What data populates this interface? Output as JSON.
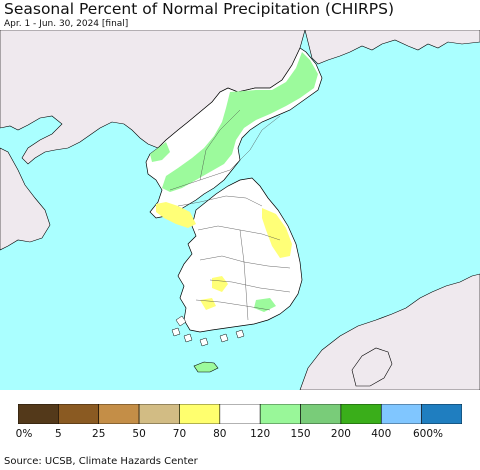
{
  "title": "Seasonal Percent of Normal Precipitation (CHIRPS)",
  "subtitle": "Apr. 1 - Jun. 30, 2024 [final]",
  "source": "Source: UCSB, Climate Hazards Center",
  "colors": {
    "ocean": "#aaffff",
    "land_outside": "#efe9ee",
    "normal": "#ffffff",
    "wet_120_150": "#9cfa9c",
    "dry_70_80": "#ffff77",
    "border": "#000000"
  },
  "legend": {
    "bins": [
      {
        "color": "#53391a"
      },
      {
        "color": "#8a5a22"
      },
      {
        "color": "#c48e47"
      },
      {
        "color": "#d2bc84"
      },
      {
        "color": "#ffff6e"
      },
      {
        "color": "#ffffff"
      },
      {
        "color": "#99f799"
      },
      {
        "color": "#79cc79"
      },
      {
        "color": "#3aae1a"
      },
      {
        "color": "#80c6ff"
      },
      {
        "color": "#1f7ec0"
      }
    ],
    "tick_labels": [
      "0%",
      "5",
      "25",
      "50",
      "70",
      "80",
      "120",
      "150",
      "200",
      "400",
      "600%"
    ]
  }
}
